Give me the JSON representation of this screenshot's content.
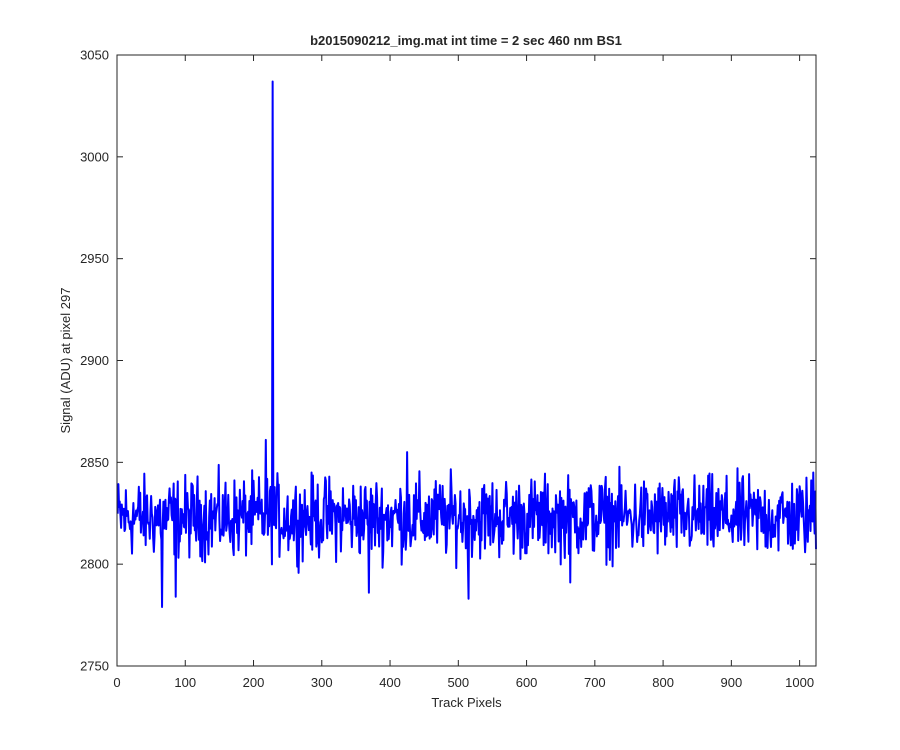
{
  "chart_data": {
    "type": "line",
    "title": "b2015090212_img.mat int time = 2 sec  460 nm BS1",
    "xlabel": "Track Pixels",
    "ylabel": "Signal (ADU) at pixel 297",
    "xlim": [
      0,
      1024
    ],
    "ylim": [
      2750,
      3050
    ],
    "xticks": [
      0,
      100,
      200,
      300,
      400,
      500,
      600,
      700,
      800,
      900,
      1000
    ],
    "yticks": [
      2750,
      2800,
      2850,
      2900,
      2950,
      3000,
      3050
    ],
    "grid": false,
    "box": true,
    "legend": "none",
    "series": [
      {
        "color": "#0000ff",
        "baseline": 2823,
        "noise_amplitude": 12,
        "x_range": [
          1,
          1024
        ],
        "spikes": [
          {
            "x": 66,
            "y": 2779
          },
          {
            "x": 86,
            "y": 2784
          },
          {
            "x": 218,
            "y": 2861
          },
          {
            "x": 228,
            "y": 3037
          },
          {
            "x": 369,
            "y": 2786
          },
          {
            "x": 425,
            "y": 2855
          },
          {
            "x": 515,
            "y": 2783
          },
          {
            "x": 664,
            "y": 2791
          },
          {
            "x": 1020,
            "y": 2845
          }
        ]
      }
    ]
  }
}
